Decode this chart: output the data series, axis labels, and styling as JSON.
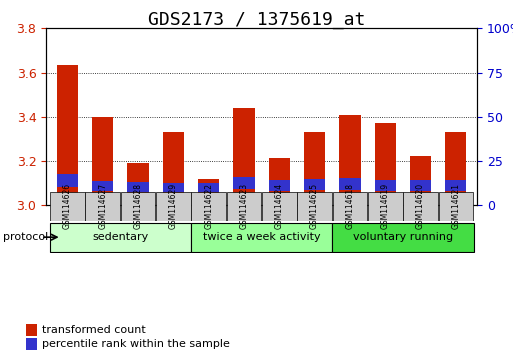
{
  "title": "GDS2173 / 1375619_at",
  "samples": [
    "GSM114626",
    "GSM114627",
    "GSM114628",
    "GSM114629",
    "GSM114622",
    "GSM114623",
    "GSM114624",
    "GSM114625",
    "GSM114618",
    "GSM114619",
    "GSM114620",
    "GSM114621"
  ],
  "red_values": [
    3.635,
    3.4,
    3.19,
    3.33,
    3.12,
    3.44,
    3.215,
    3.33,
    3.41,
    3.37,
    3.225,
    3.33
  ],
  "blue_values": [
    0.055,
    0.045,
    0.045,
    0.045,
    0.045,
    0.055,
    0.05,
    0.05,
    0.055,
    0.05,
    0.05,
    0.05
  ],
  "blue_positions": [
    3.085,
    3.065,
    3.06,
    3.058,
    3.058,
    3.072,
    3.065,
    3.067,
    3.068,
    3.063,
    3.065,
    3.063
  ],
  "ymin": 3.0,
  "ymax": 3.8,
  "y_ticks": [
    3.0,
    3.2,
    3.4,
    3.6,
    3.8
  ],
  "y2_ticks": [
    0,
    25,
    50,
    75,
    100
  ],
  "y2_labels": [
    "0",
    "25",
    "50",
    "75",
    "100%"
  ],
  "red_color": "#CC2200",
  "blue_color": "#3333CC",
  "bar_width": 0.6,
  "groups": [
    {
      "label": "sedentary",
      "start": 0,
      "end": 3,
      "color": "#CCFFCC"
    },
    {
      "label": "twice a week activity",
      "start": 4,
      "end": 7,
      "color": "#99FF99"
    },
    {
      "label": "voluntary running",
      "start": 8,
      "end": 11,
      "color": "#44DD44"
    }
  ],
  "protocol_label": "protocol",
  "legend": [
    {
      "label": "transformed count",
      "color": "#CC2200"
    },
    {
      "label": "percentile rank within the sample",
      "color": "#3333CC"
    }
  ],
  "grid_color": "black",
  "bg_color": "#FFFFFF",
  "axis_label_color_left": "#CC2200",
  "axis_label_color_right": "#0000CC",
  "sample_bg": "#CCCCCC",
  "title_fontsize": 13,
  "tick_fontsize": 9,
  "bar_base": 3.0
}
